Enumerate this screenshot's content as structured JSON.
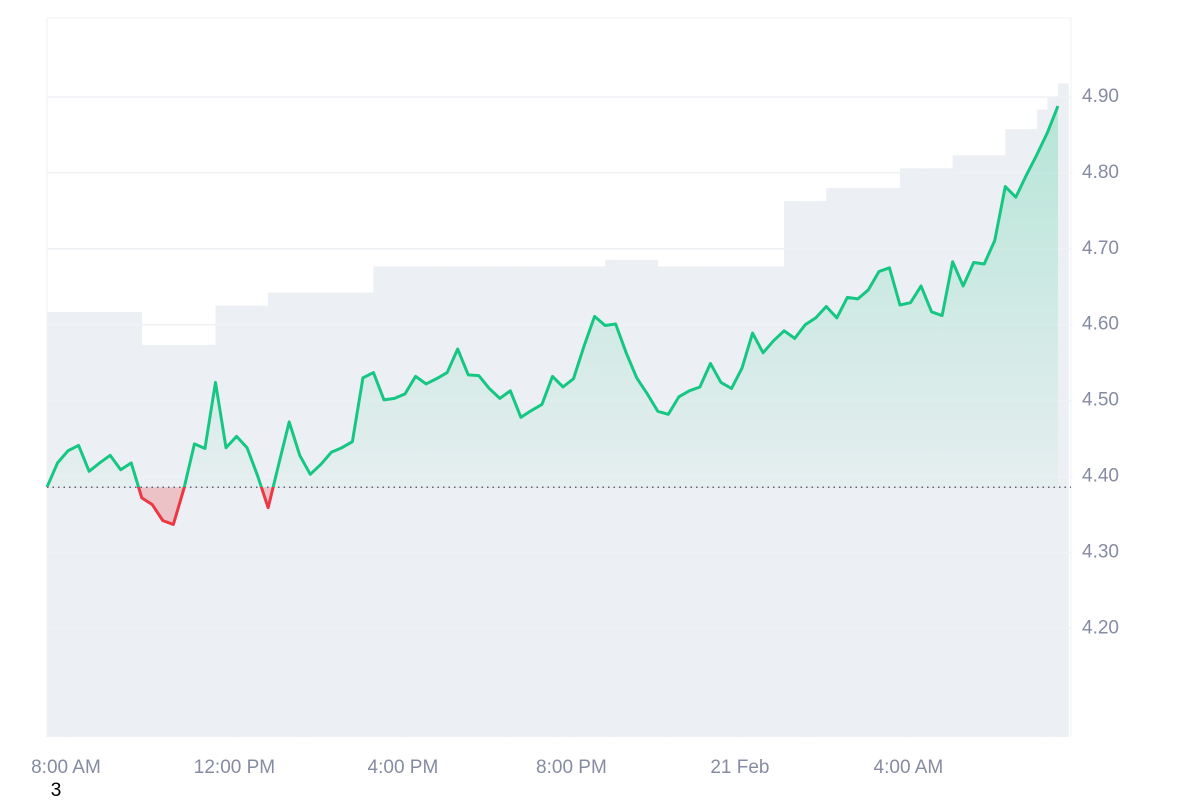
{
  "chart_data": {
    "type": "baseline-line",
    "line_color_up": "#16c784",
    "line_color_down": "#ea3943",
    "baseline": 4.386,
    "xlim": [
      7.55,
      31.86
    ],
    "xticks": [
      {
        "value": 8,
        "label": "8:00 AM"
      },
      {
        "value": 12,
        "label": "12:00 PM"
      },
      {
        "value": 16,
        "label": "4:00 PM"
      },
      {
        "value": 20,
        "label": "8:00 PM"
      },
      {
        "value": 24,
        "label": "21 Feb"
      },
      {
        "value": 28,
        "label": "4:00 AM"
      }
    ],
    "ylim": [
      4.057,
      5.004
    ],
    "yticks": [
      {
        "value": 4.2,
        "label": "4.20"
      },
      {
        "value": 4.3,
        "label": "4.30"
      },
      {
        "value": 4.4,
        "label": "4.40"
      },
      {
        "value": 4.5,
        "label": "4.50"
      },
      {
        "value": 4.6,
        "label": "4.60"
      },
      {
        "value": 4.7,
        "label": "4.70"
      },
      {
        "value": 4.8,
        "label": "4.80"
      },
      {
        "value": 4.9,
        "label": "4.90"
      }
    ],
    "grid": true,
    "x": [
      7.55,
      7.8,
      8.05,
      8.3,
      8.55,
      8.8,
      9.05,
      9.3,
      9.55,
      9.8,
      10.05,
      10.3,
      10.55,
      10.8,
      11.05,
      11.3,
      11.55,
      11.8,
      12.05,
      12.3,
      12.55,
      12.8,
      13.05,
      13.3,
      13.55,
      13.8,
      14.05,
      14.3,
      14.55,
      14.8,
      15.05,
      15.3,
      15.55,
      15.8,
      16.05,
      16.3,
      16.55,
      16.8,
      17.05,
      17.3,
      17.55,
      17.8,
      18.05,
      18.3,
      18.55,
      18.8,
      19.05,
      19.3,
      19.55,
      19.8,
      20.05,
      20.3,
      20.55,
      20.8,
      21.05,
      21.3,
      21.55,
      21.8,
      22.05,
      22.3,
      22.55,
      22.8,
      23.05,
      23.3,
      23.55,
      23.8,
      24.05,
      24.3,
      24.55,
      24.8,
      25.05,
      25.3,
      25.55,
      25.8,
      26.05,
      26.3,
      26.55,
      26.8,
      27.05,
      27.3,
      27.55,
      27.8,
      28.05,
      28.3,
      28.55,
      28.8,
      29.05,
      29.3,
      29.55,
      29.8,
      30.05,
      30.3,
      30.55,
      30.8,
      31.05,
      31.3,
      31.55
    ],
    "values": [
      4.386,
      4.418,
      4.434,
      4.441,
      4.407,
      4.418,
      4.428,
      4.409,
      4.418,
      4.372,
      4.363,
      4.342,
      4.337,
      4.384,
      4.443,
      4.437,
      4.524,
      4.438,
      4.453,
      4.438,
      4.401,
      4.359,
      4.416,
      4.472,
      4.428,
      4.403,
      4.416,
      4.432,
      4.438,
      4.446,
      4.53,
      4.537,
      4.501,
      4.503,
      4.509,
      4.532,
      4.522,
      4.529,
      4.537,
      4.568,
      4.534,
      4.533,
      4.516,
      4.503,
      4.513,
      4.478,
      4.487,
      4.495,
      4.532,
      4.518,
      4.529,
      4.572,
      4.611,
      4.599,
      4.601,
      4.563,
      4.53,
      4.509,
      4.486,
      4.482,
      4.505,
      4.513,
      4.518,
      4.549,
      4.524,
      4.516,
      4.543,
      4.589,
      4.563,
      4.579,
      4.592,
      4.582,
      4.6,
      4.609,
      4.624,
      4.609,
      4.636,
      4.634,
      4.646,
      4.67,
      4.675,
      4.626,
      4.629,
      4.651,
      4.617,
      4.612,
      4.683,
      4.651,
      4.682,
      4.68,
      4.711,
      4.782,
      4.768,
      4.797,
      4.824,
      4.853,
      4.888
    ],
    "volume_color": "#eceff3",
    "vlim": [
      0,
      110
    ],
    "volume": [
      65,
      65,
      65,
      65,
      65,
      65,
      65,
      65,
      65,
      60,
      60,
      60,
      60,
      60,
      60,
      60,
      66,
      66,
      66,
      66,
      66,
      68,
      68,
      68,
      68,
      68,
      68,
      68,
      68,
      68,
      68,
      72,
      72,
      72,
      72,
      72,
      72,
      72,
      72,
      72,
      72,
      72,
      72,
      72,
      72,
      72,
      72,
      72,
      72,
      72,
      72,
      72,
      72,
      73,
      73,
      73,
      73,
      73,
      72,
      72,
      72,
      72,
      72,
      72,
      72,
      72,
      72,
      72,
      72,
      72,
      82,
      82,
      82,
      82,
      84,
      84,
      84,
      84,
      84,
      84,
      84,
      87,
      87,
      87,
      87,
      87,
      89,
      89,
      89,
      89,
      89,
      93,
      93,
      93,
      96,
      98,
      100
    ],
    "corner_label": "3"
  }
}
